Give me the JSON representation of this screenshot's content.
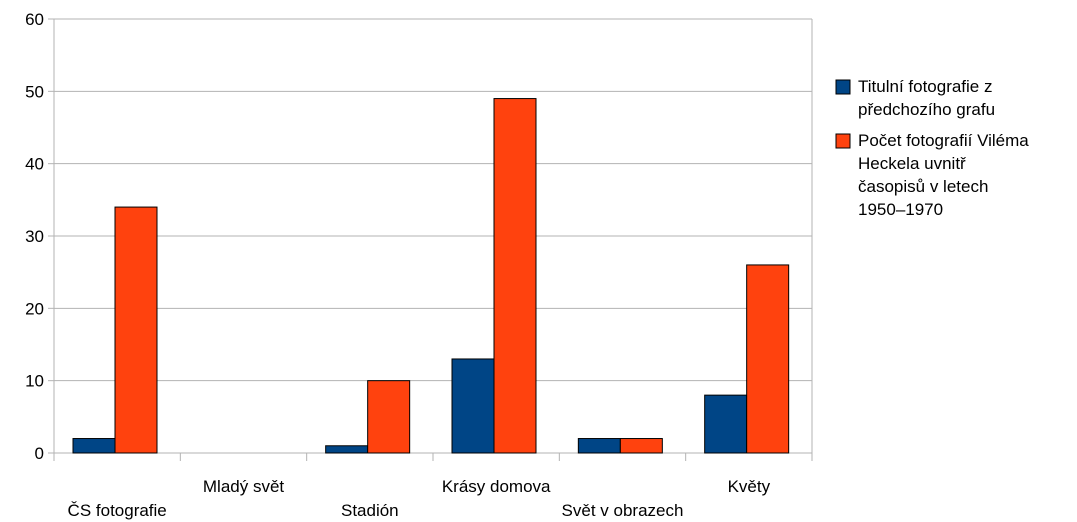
{
  "chart_data": {
    "type": "bar",
    "categories": [
      "ČS fotografie",
      "Mladý svět",
      "Stadión",
      "Krásy domova",
      "Svět v obrazech",
      "Květy"
    ],
    "series": [
      {
        "name": "Titulní fotografie z předchozího grafu",
        "legend_lines": [
          "Titulní fotografie z",
          "předchozího grafu"
        ],
        "color": "#004586",
        "values": [
          2,
          0,
          1,
          13,
          2,
          8
        ]
      },
      {
        "name": "Počet fotografií Viléma Heckela uvnitř časopisů v letech 1950–1970",
        "legend_lines": [
          "Počet fotografií Viléma",
          "Heckela uvnitř",
          "časopisů v letech",
          "1950–1970"
        ],
        "color": "#ff420e",
        "values": [
          34,
          0,
          10,
          49,
          2,
          26
        ]
      }
    ],
    "yticks": [
      "0",
      "10",
      "20",
      "30",
      "40",
      "50",
      "60"
    ],
    "ylim": [
      0,
      60
    ],
    "grid": true,
    "legend_position": "right",
    "title": "",
    "xlabel": "",
    "ylabel": ""
  }
}
